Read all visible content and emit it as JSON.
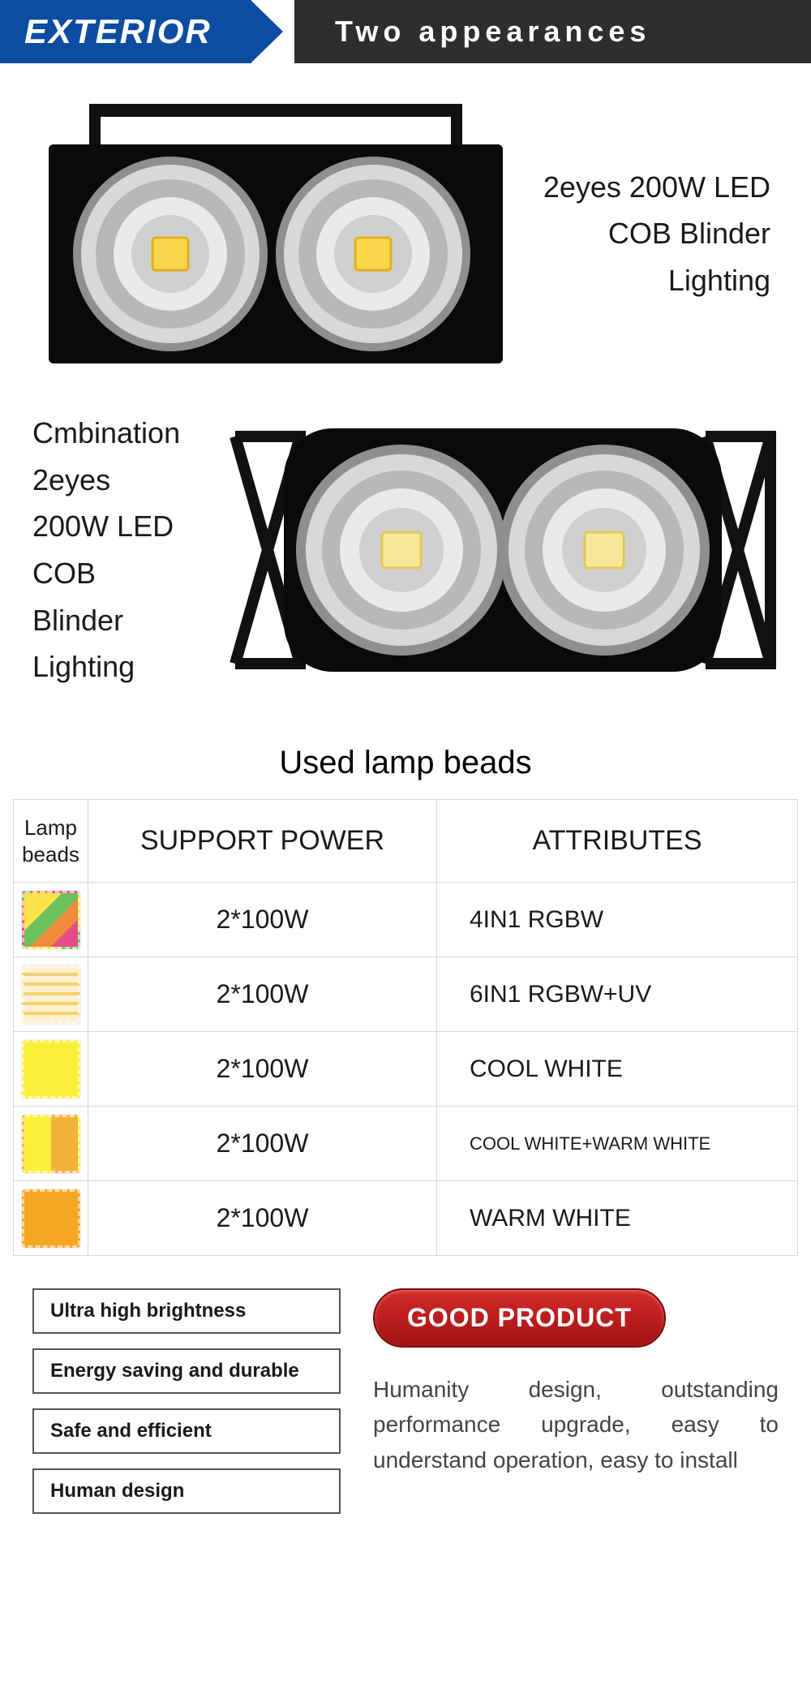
{
  "header": {
    "left_label": "EXTERIOR",
    "right_label": "Two appearances",
    "left_bg": "#0c4da2",
    "right_bg": "#2e2e2e"
  },
  "products": [
    {
      "label_lines": [
        "2eyes 200W LED",
        "COB Blinder",
        "Lighting"
      ],
      "image_side": "left"
    },
    {
      "label_lines": [
        "Cmbination 2eyes",
        "200W LED COB",
        "Blinder Lighting"
      ],
      "image_side": "right"
    }
  ],
  "table": {
    "title": "Used lamp beads",
    "columns": [
      "Lamp beads",
      "SUPPORT POWER",
      "ATTRIBUTES"
    ],
    "rows": [
      {
        "bead_style": "rgbw",
        "bead_color": "#f5d742",
        "power": "2*100W",
        "attr": "4IN1 RGBW",
        "attr_small": false
      },
      {
        "bead_style": "6in1",
        "bead_color": "#f8e8b0",
        "power": "2*100W",
        "attr": "6IN1 RGBW+UV",
        "attr_small": false
      },
      {
        "bead_style": "solid",
        "bead_color": "#fcef3a",
        "power": "2*100W",
        "attr": "COOL WHITE",
        "attr_small": false
      },
      {
        "bead_style": "split",
        "bead_color": "#fcef3a",
        "bead_color2": "#f4b23a",
        "power": "2*100W",
        "attr": "COOL WHITE+WARM WHITE",
        "attr_small": true
      },
      {
        "bead_style": "solid",
        "bead_color": "#f5a623",
        "power": "2*100W",
        "attr": "WARM WHITE",
        "attr_small": false
      }
    ]
  },
  "footer": {
    "features": [
      "Ultra high brightness",
      "Energy saving and durable",
      "Safe and efficient",
      "Human design"
    ],
    "badge": "GOOD PRODUCT",
    "description": "Humanity design, outstanding performance upgrade, easy to understand operation, easy to install"
  },
  "lamp_svg": {
    "housing_color": "#0a0a0a",
    "reflector_outer": "#d8d8d8",
    "reflector_mid": "#b8b8b8",
    "reflector_inner": "#eaeaea",
    "led_color": "#f8d84a",
    "led_edge": "#e0b020"
  }
}
